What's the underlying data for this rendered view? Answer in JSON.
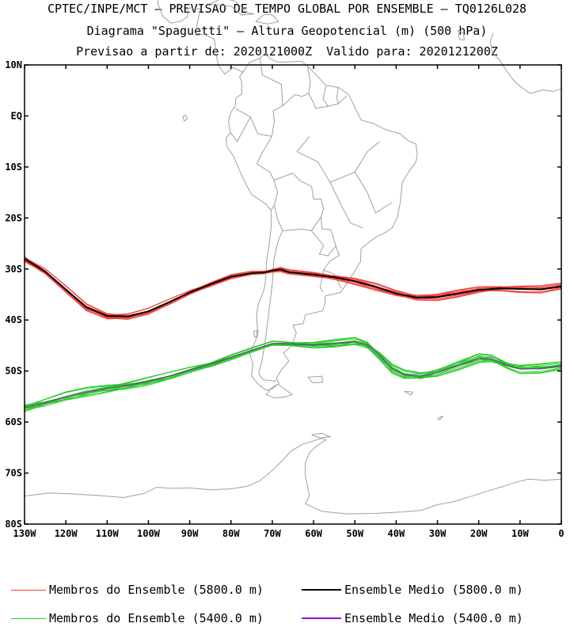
{
  "titles": {
    "line1": "CPTEC/INPE/MCT — PREVISAO DE TEMPO GLOBAL POR ENSEMBLE — TQ0126L028",
    "line2": "Diagrama \"Spaguetti\" — Altura Geopotencial (m) (500 hPa)",
    "line3": "Previsao a partir de: 2020121000Z  Valido para: 2020121200Z"
  },
  "map": {
    "lon_range": [
      -130,
      0
    ],
    "lat_range": [
      -80,
      10
    ],
    "lat_ticks": [
      {
        "value": 10,
        "label": "10N"
      },
      {
        "value": 0,
        "label": "EQ"
      },
      {
        "value": -10,
        "label": "10S"
      },
      {
        "value": -20,
        "label": "20S"
      },
      {
        "value": -30,
        "label": "30S"
      },
      {
        "value": -40,
        "label": "40S"
      },
      {
        "value": -50,
        "label": "50S"
      },
      {
        "value": -60,
        "label": "60S"
      },
      {
        "value": -70,
        "label": "70S"
      },
      {
        "value": -80,
        "label": "80S"
      }
    ],
    "lon_ticks": [
      {
        "value": -130,
        "label": "130W"
      },
      {
        "value": -120,
        "label": "120W"
      },
      {
        "value": -110,
        "label": "110W"
      },
      {
        "value": -100,
        "label": "100W"
      },
      {
        "value": -90,
        "label": "90W"
      },
      {
        "value": -80,
        "label": "80W"
      },
      {
        "value": -70,
        "label": "70W"
      },
      {
        "value": -60,
        "label": "60W"
      },
      {
        "value": -50,
        "label": "50W"
      },
      {
        "value": -40,
        "label": "40W"
      },
      {
        "value": -30,
        "label": "30W"
      },
      {
        "value": -20,
        "label": "20W"
      },
      {
        "value": -10,
        "label": "10W"
      },
      {
        "value": 0,
        "label": "0"
      }
    ],
    "colors": {
      "coast": "#a0a0a0",
      "member_5800": "#f0403c",
      "mean_5800": "#000000",
      "member_5400": "#22cc22",
      "mean_5400": "#a000c8"
    },
    "contour_5800_mean": [
      [
        -130,
        -28
      ],
      [
        -125,
        -30.5
      ],
      [
        -120,
        -34
      ],
      [
        -115,
        -37.5
      ],
      [
        -110,
        -39.2
      ],
      [
        -105,
        -39.3
      ],
      [
        -100,
        -38.3
      ],
      [
        -95,
        -36.5
      ],
      [
        -90,
        -34.6
      ],
      [
        -85,
        -33
      ],
      [
        -80,
        -31.5
      ],
      [
        -75,
        -30.8
      ],
      [
        -72,
        -30.7
      ],
      [
        -70,
        -30.3
      ],
      [
        -68,
        -30.1
      ],
      [
        -66,
        -30.6
      ],
      [
        -60,
        -31.1
      ],
      [
        -55,
        -31.6
      ],
      [
        -50,
        -32.4
      ],
      [
        -45,
        -33.5
      ],
      [
        -40,
        -34.8
      ],
      [
        -35,
        -35.6
      ],
      [
        -30,
        -35.5
      ],
      [
        -25,
        -34.8
      ],
      [
        -20,
        -34.1
      ],
      [
        -15,
        -33.8
      ],
      [
        -10,
        -33.9
      ],
      [
        -5,
        -34.0
      ],
      [
        0,
        -33.4
      ]
    ],
    "contour_5400_mean": [
      [
        -130,
        -57.2
      ],
      [
        -125,
        -56.2
      ],
      [
        -120,
        -55.0
      ],
      [
        -115,
        -54.1
      ],
      [
        -110,
        -53.4
      ],
      [
        -105,
        -52.8
      ],
      [
        -100,
        -52.0
      ],
      [
        -95,
        -51.0
      ],
      [
        -90,
        -49.8
      ],
      [
        -85,
        -48.7
      ],
      [
        -80,
        -47.3
      ],
      [
        -75,
        -45.9
      ],
      [
        -70,
        -44.6
      ],
      [
        -65,
        -44.7
      ],
      [
        -60,
        -44.9
      ],
      [
        -55,
        -44.6
      ],
      [
        -50,
        -44.2
      ],
      [
        -47,
        -44.9
      ],
      [
        -44,
        -47.0
      ],
      [
        -41,
        -49.5
      ],
      [
        -38,
        -50.7
      ],
      [
        -34,
        -51.0
      ],
      [
        -30,
        -50.3
      ],
      [
        -25,
        -48.9
      ],
      [
        -20,
        -47.5
      ],
      [
        -17,
        -47.6
      ],
      [
        -13,
        -48.9
      ],
      [
        -10,
        -49.6
      ],
      [
        -5,
        -49.5
      ],
      [
        0,
        -49.0
      ]
    ]
  },
  "legend": {
    "members_5800": "Membros do Ensemble (5800.0 m)",
    "mean_5800": "Ensemble Medio (5800.0 m)",
    "members_5400": "Membros do Ensemble (5400.0 m)",
    "mean_5400": "Ensemble Medio (5400.0 m)"
  }
}
